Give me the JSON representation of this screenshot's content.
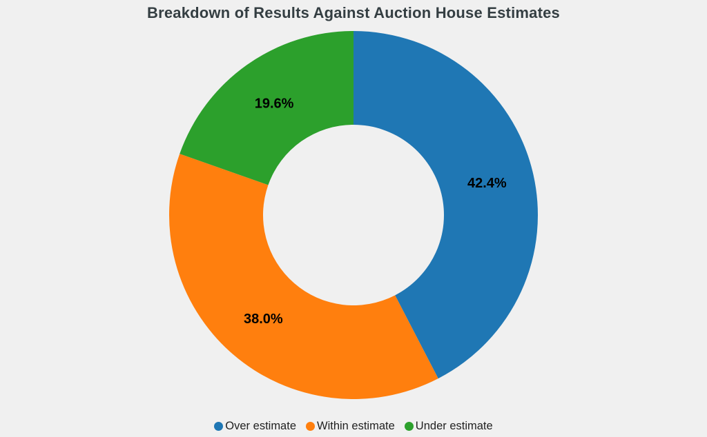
{
  "chart_data": {
    "type": "pie",
    "subtype": "donut",
    "title": "Breakdown of Results Against Auction House Estimates",
    "labels": [
      "Over estimate",
      "Within estimate",
      "Under estimate"
    ],
    "values": [
      42.4,
      38.0,
      19.6
    ],
    "display_labels": [
      "42.4%",
      "38.0%",
      "19.6%"
    ],
    "colors": [
      "#1f77b4",
      "#ff7f0e",
      "#2ca02c"
    ],
    "start_angle_deg": 0,
    "direction": "clockwise",
    "hole_ratio": 0.49,
    "legend_position": "bottom",
    "background_color": "#f0f0f0",
    "title_color": "#343e42",
    "slice_label_color": "#000000",
    "legend_text_color": "#222222"
  }
}
